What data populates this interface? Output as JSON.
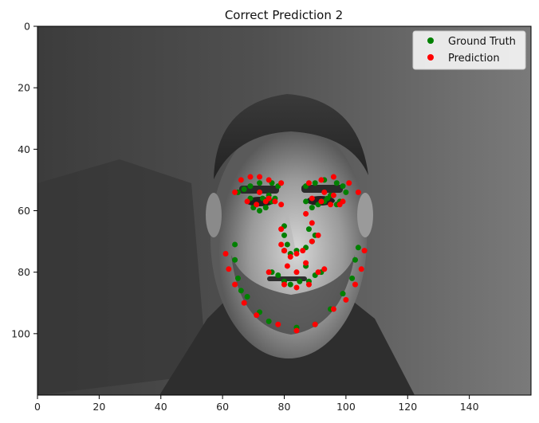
{
  "chart_data": {
    "type": "scatter",
    "title": "Correct Prediction 2",
    "xlabel": "",
    "ylabel": "",
    "xlim": [
      0,
      160
    ],
    "ylim": [
      120,
      0
    ],
    "y_inverted": true,
    "grid": false,
    "legend_position": "top-right",
    "x_ticks": [
      "0",
      "20",
      "40",
      "60",
      "80",
      "100",
      "120",
      "140"
    ],
    "y_ticks": [
      "0",
      "20",
      "40",
      "60",
      "80",
      "100"
    ],
    "x_tick_values": [
      0,
      20,
      40,
      60,
      80,
      100,
      120,
      140
    ],
    "y_tick_values": [
      0,
      20,
      40,
      60,
      80,
      100
    ],
    "background": "grayscale portrait photograph (face of a man)",
    "series": [
      {
        "name": "Ground Truth",
        "color": "#008000",
        "points": [
          [
            64,
            71
          ],
          [
            64,
            76
          ],
          [
            65,
            82
          ],
          [
            66,
            86
          ],
          [
            68,
            88
          ],
          [
            72,
            93
          ],
          [
            75,
            96
          ],
          [
            84,
            98
          ],
          [
            90,
            97
          ],
          [
            95,
            92
          ],
          [
            99,
            87
          ],
          [
            102,
            82
          ],
          [
            103,
            76
          ],
          [
            104,
            72
          ],
          [
            65,
            54
          ],
          [
            67,
            53
          ],
          [
            69,
            52
          ],
          [
            72,
            51
          ],
          [
            76,
            51
          ],
          [
            78,
            52
          ],
          [
            87,
            52
          ],
          [
            90,
            51
          ],
          [
            93,
            50
          ],
          [
            97,
            51
          ],
          [
            99,
            52
          ],
          [
            100,
            54
          ],
          [
            69,
            56
          ],
          [
            70,
            59
          ],
          [
            72,
            60
          ],
          [
            74,
            59
          ],
          [
            76,
            57
          ],
          [
            73,
            56
          ],
          [
            75,
            55
          ],
          [
            77,
            56
          ],
          [
            87,
            57
          ],
          [
            89,
            59
          ],
          [
            91,
            58
          ],
          [
            93,
            57
          ],
          [
            95,
            55
          ],
          [
            94,
            56
          ],
          [
            97,
            58
          ],
          [
            98,
            57
          ],
          [
            80,
            65
          ],
          [
            80,
            68
          ],
          [
            81,
            71
          ],
          [
            80,
            73
          ],
          [
            82,
            74
          ],
          [
            84,
            73
          ],
          [
            87,
            72
          ],
          [
            89,
            70
          ],
          [
            90,
            68
          ],
          [
            88,
            66
          ],
          [
            76,
            80
          ],
          [
            78,
            81
          ],
          [
            80,
            83
          ],
          [
            82,
            84
          ],
          [
            85,
            83
          ],
          [
            88,
            83
          ],
          [
            90,
            81
          ],
          [
            92,
            80
          ],
          [
            87,
            78
          ]
        ]
      },
      {
        "name": "Prediction",
        "color": "#ff0000",
        "points": [
          [
            61,
            74
          ],
          [
            62,
            79
          ],
          [
            64,
            84
          ],
          [
            67,
            90
          ],
          [
            71,
            94
          ],
          [
            78,
            97
          ],
          [
            84,
            99
          ],
          [
            90,
            97
          ],
          [
            96,
            92
          ],
          [
            100,
            89
          ],
          [
            103,
            84
          ],
          [
            105,
            79
          ],
          [
            106,
            73
          ],
          [
            64,
            54
          ],
          [
            66,
            50
          ],
          [
            69,
            49
          ],
          [
            72,
            49
          ],
          [
            75,
            50
          ],
          [
            79,
            51
          ],
          [
            88,
            51
          ],
          [
            92,
            50
          ],
          [
            96,
            49
          ],
          [
            101,
            51
          ],
          [
            104,
            54
          ],
          [
            68,
            57
          ],
          [
            71,
            58
          ],
          [
            74,
            57
          ],
          [
            77,
            57
          ],
          [
            72,
            54
          ],
          [
            75,
            56
          ],
          [
            79,
            58
          ],
          [
            89,
            56
          ],
          [
            92,
            57
          ],
          [
            95,
            58
          ],
          [
            98,
            58
          ],
          [
            93,
            54
          ],
          [
            96,
            55
          ],
          [
            99,
            57
          ],
          [
            79,
            66
          ],
          [
            79,
            71
          ],
          [
            80,
            73
          ],
          [
            82,
            75
          ],
          [
            84,
            74
          ],
          [
            86,
            73
          ],
          [
            89,
            70
          ],
          [
            91,
            68
          ],
          [
            89,
            64
          ],
          [
            87,
            61
          ],
          [
            75,
            80
          ],
          [
            80,
            84
          ],
          [
            84,
            85
          ],
          [
            88,
            84
          ],
          [
            91,
            80
          ],
          [
            93,
            79
          ],
          [
            87,
            77
          ],
          [
            81,
            78
          ],
          [
            84,
            80
          ]
        ]
      }
    ]
  }
}
